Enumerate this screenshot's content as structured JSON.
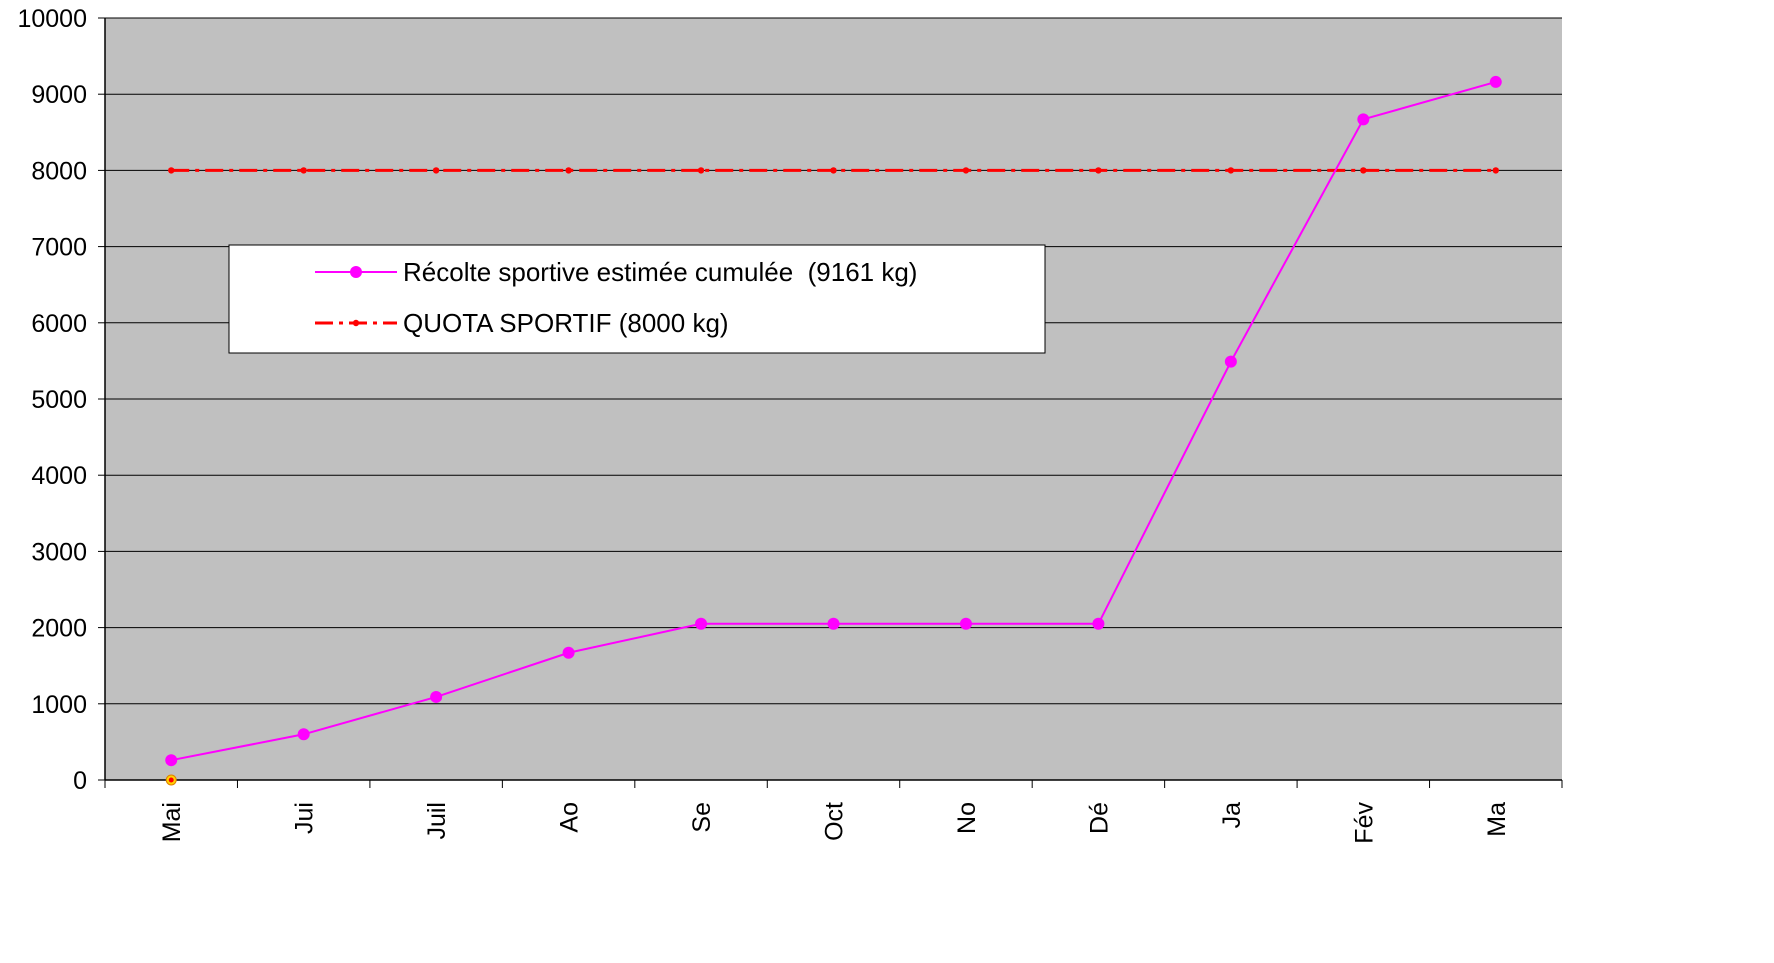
{
  "chart_data": {
    "type": "line",
    "categories": [
      "Mai",
      "Jui",
      "Juil",
      "Ao",
      "Se",
      "Oct",
      "No",
      "Dé",
      "Ja",
      "Fév",
      "Ma"
    ],
    "ylim": [
      0,
      10000
    ],
    "yticks": [
      0,
      1000,
      2000,
      3000,
      4000,
      5000,
      6000,
      7000,
      8000,
      9000,
      10000
    ],
    "grid": true,
    "legend_position": "upper-left",
    "background_color": "#c0c0c0",
    "series": [
      {
        "name": "Récolte sportive estimée cumulée  (9161 kg)",
        "color": "#ff00ff",
        "style": "solid",
        "marker": "circle",
        "values": [
          260,
          600,
          1090,
          1670,
          2050,
          2050,
          2050,
          2050,
          5490,
          8670,
          9161
        ]
      },
      {
        "name": "QUOTA SPORTIF (8000 kg)",
        "color": "#ff0000",
        "style": "dash-dot",
        "marker": "small-dot",
        "values": [
          8000,
          8000,
          8000,
          8000,
          8000,
          8000,
          8000,
          8000,
          8000,
          8000,
          8000
        ]
      }
    ]
  }
}
